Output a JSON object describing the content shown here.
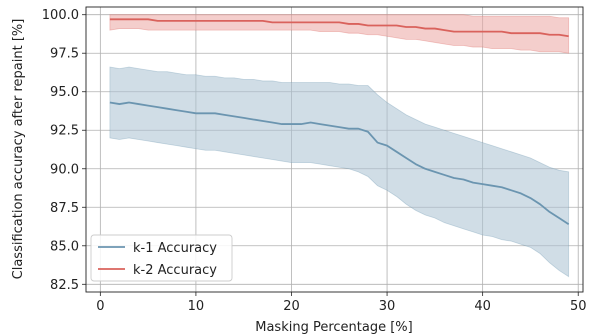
{
  "chart_data": {
    "type": "line",
    "xlabel": "Masking Percentage [%]",
    "ylabel": "Classification accuracy after repaint [%]",
    "xlim": [
      -1.5,
      50.5
    ],
    "ylim": [
      82.0,
      100.5
    ],
    "x_ticks": [
      0,
      10,
      20,
      30,
      40,
      50
    ],
    "y_ticks": [
      82.5,
      85.0,
      87.5,
      90.0,
      92.5,
      95.0,
      97.5,
      100.0
    ],
    "x_tick_labels": [
      "0",
      "10",
      "20",
      "30",
      "40",
      "50"
    ],
    "y_tick_labels": [
      "82.5",
      "85.0",
      "87.5",
      "90.0",
      "92.5",
      "95.0",
      "97.5",
      "100.0"
    ],
    "grid": true,
    "legend_position": "lower-left",
    "x": [
      1,
      2,
      3,
      4,
      5,
      6,
      7,
      8,
      9,
      10,
      11,
      12,
      13,
      14,
      15,
      16,
      17,
      18,
      19,
      20,
      21,
      22,
      23,
      24,
      25,
      26,
      27,
      28,
      29,
      30,
      31,
      32,
      33,
      34,
      35,
      36,
      37,
      38,
      39,
      40,
      41,
      42,
      43,
      44,
      45,
      46,
      47,
      48,
      49
    ],
    "series": [
      {
        "name": "k-1 Accuracy",
        "color": "#6b95b0",
        "band_color": "#a9c1d1",
        "values": [
          94.3,
          94.2,
          94.3,
          94.2,
          94.1,
          94.0,
          93.9,
          93.8,
          93.7,
          93.6,
          93.6,
          93.6,
          93.5,
          93.4,
          93.3,
          93.2,
          93.1,
          93.0,
          92.9,
          92.9,
          92.9,
          93.0,
          92.9,
          92.8,
          92.7,
          92.6,
          92.6,
          92.4,
          91.7,
          91.5,
          91.1,
          90.7,
          90.3,
          90.0,
          89.8,
          89.6,
          89.4,
          89.3,
          89.1,
          89.0,
          88.9,
          88.8,
          88.6,
          88.4,
          88.1,
          87.7,
          87.2,
          86.8,
          86.4
        ],
        "upper": [
          96.6,
          96.5,
          96.6,
          96.5,
          96.4,
          96.3,
          96.3,
          96.2,
          96.1,
          96.1,
          96.0,
          96.0,
          95.9,
          95.9,
          95.8,
          95.8,
          95.7,
          95.7,
          95.6,
          95.6,
          95.6,
          95.6,
          95.6,
          95.6,
          95.5,
          95.5,
          95.4,
          95.4,
          94.8,
          94.3,
          93.9,
          93.5,
          93.2,
          92.9,
          92.7,
          92.5,
          92.3,
          92.1,
          91.9,
          91.7,
          91.5,
          91.3,
          91.1,
          90.9,
          90.7,
          90.4,
          90.1,
          89.9,
          89.8
        ],
        "lower": [
          92.0,
          91.9,
          92.0,
          91.9,
          91.8,
          91.7,
          91.6,
          91.5,
          91.4,
          91.3,
          91.2,
          91.2,
          91.1,
          91.0,
          90.9,
          90.8,
          90.7,
          90.6,
          90.5,
          90.4,
          90.4,
          90.4,
          90.3,
          90.2,
          90.1,
          90.0,
          89.8,
          89.5,
          88.9,
          88.6,
          88.2,
          87.7,
          87.3,
          87.0,
          86.8,
          86.5,
          86.3,
          86.1,
          85.9,
          85.7,
          85.6,
          85.4,
          85.3,
          85.1,
          84.9,
          84.5,
          83.9,
          83.4,
          83.0
        ]
      },
      {
        "name": "k-2 Accuracy",
        "color": "#d9625c",
        "band_color": "#eba5a2",
        "values": [
          99.7,
          99.7,
          99.7,
          99.7,
          99.7,
          99.6,
          99.6,
          99.6,
          99.6,
          99.6,
          99.6,
          99.6,
          99.6,
          99.6,
          99.6,
          99.6,
          99.6,
          99.5,
          99.5,
          99.5,
          99.5,
          99.5,
          99.5,
          99.5,
          99.5,
          99.4,
          99.4,
          99.3,
          99.3,
          99.3,
          99.3,
          99.2,
          99.2,
          99.1,
          99.1,
          99.0,
          98.9,
          98.9,
          98.9,
          98.9,
          98.9,
          98.9,
          98.8,
          98.8,
          98.8,
          98.8,
          98.7,
          98.7,
          98.6
        ],
        "upper": [
          100.0,
          100.0,
          100.0,
          100.0,
          100.0,
          100.0,
          100.0,
          100.0,
          100.0,
          100.0,
          100.0,
          100.0,
          100.0,
          100.0,
          100.0,
          100.0,
          100.0,
          100.0,
          100.0,
          100.0,
          100.0,
          100.0,
          100.0,
          100.0,
          100.0,
          100.0,
          100.0,
          100.0,
          100.0,
          100.0,
          100.0,
          100.0,
          100.0,
          100.0,
          100.0,
          100.0,
          100.0,
          100.0,
          99.9,
          99.9,
          99.9,
          99.9,
          99.9,
          99.9,
          99.9,
          99.9,
          99.9,
          99.8,
          99.8
        ],
        "lower": [
          99.0,
          99.1,
          99.1,
          99.1,
          99.0,
          99.0,
          99.0,
          99.0,
          99.0,
          99.0,
          99.0,
          99.0,
          99.0,
          99.0,
          99.0,
          99.0,
          99.0,
          99.0,
          99.0,
          99.0,
          99.0,
          99.0,
          98.9,
          98.9,
          98.9,
          98.8,
          98.8,
          98.7,
          98.7,
          98.6,
          98.5,
          98.4,
          98.4,
          98.3,
          98.2,
          98.1,
          98.0,
          98.0,
          97.9,
          97.9,
          97.8,
          97.8,
          97.8,
          97.7,
          97.7,
          97.6,
          97.6,
          97.6,
          97.5
        ]
      }
    ]
  }
}
